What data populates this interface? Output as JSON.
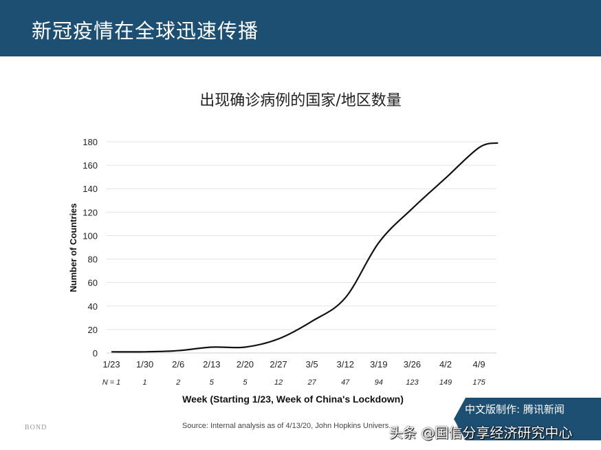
{
  "header": {
    "title": "新冠疫情在全球迅速传播"
  },
  "chart_data": {
    "type": "line",
    "title": "出现确诊病例的国家/地区数量",
    "xlabel": "Week (Starting 1/23, Week of China's Lockdown)",
    "ylabel": "Number of Countries",
    "categories": [
      "1/23",
      "1/30",
      "2/6",
      "2/13",
      "2/20",
      "2/27",
      "3/5",
      "3/12",
      "3/19",
      "3/26",
      "4/2",
      "4/9"
    ],
    "n_labels": [
      "N = 1",
      "1",
      "2",
      "5",
      "5",
      "12",
      "27",
      "47",
      "94",
      "123",
      "149",
      "175"
    ],
    "values": [
      1,
      1,
      2,
      5,
      5,
      12,
      27,
      47,
      94,
      123,
      149,
      175
    ],
    "final_point": {
      "x": "4/13",
      "y": 179
    },
    "yticks": [
      0,
      20,
      40,
      60,
      80,
      100,
      120,
      140,
      160,
      180
    ],
    "ylim": [
      0,
      180
    ],
    "grid": true,
    "line_color": "#111111"
  },
  "footer": {
    "source": "Source: Internal analysis as of 4/13/20, John Hopkins Univers...",
    "bond": "BOND",
    "credit": "中文版制作: 腾讯新闻",
    "watermark": "头条 @国信分享经济研究中心"
  }
}
